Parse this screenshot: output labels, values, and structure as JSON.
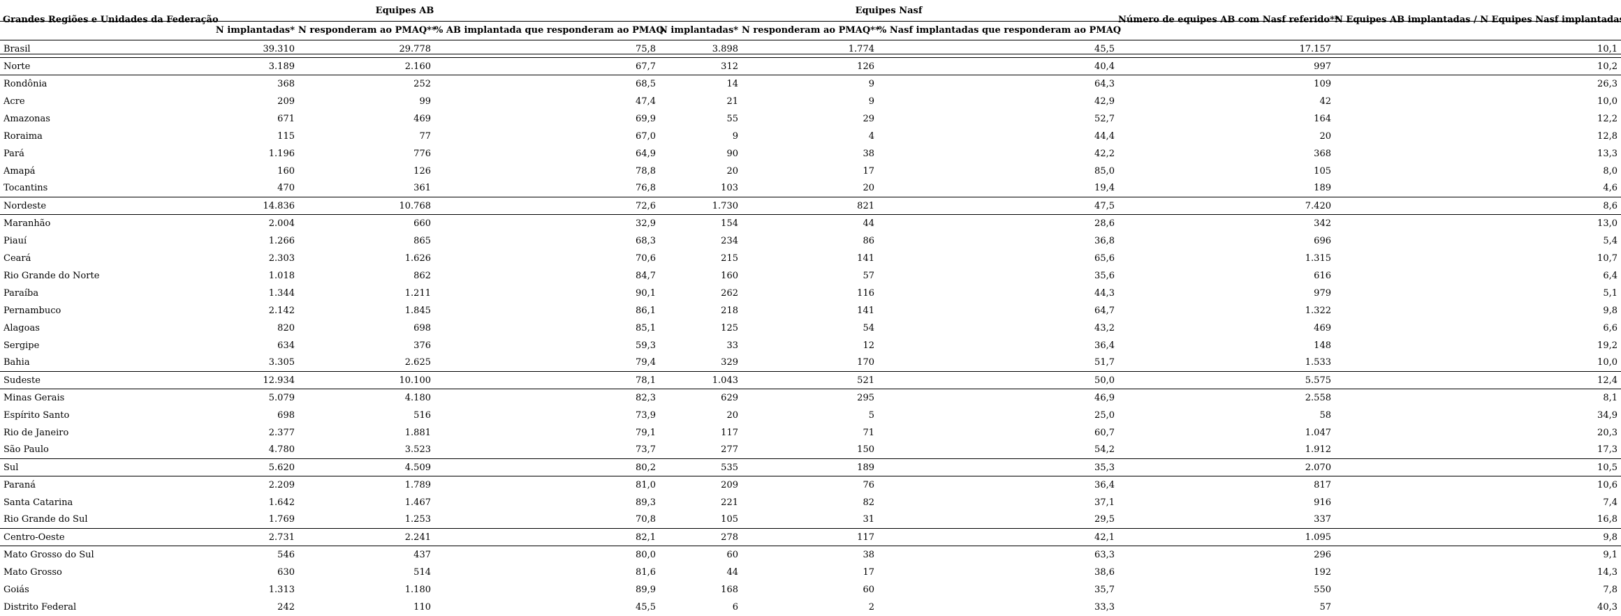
{
  "colors": {
    "text": "#000000",
    "background": "#ffffff",
    "rule": "#000000"
  },
  "table": {
    "region_column_header": "Grandes Regiões e Unidades da Federação",
    "groups": [
      {
        "label": "Equipes AB",
        "columns": [
          "N implantadas*",
          "N responderam ao PMAQ**",
          "% AB implantada que responderam ao PMAQ"
        ]
      },
      {
        "label": "Equipes Nasf",
        "columns": [
          "N implantadas*",
          "N responderam ao PMAQ**",
          "% Nasf implantadas que responderam ao PMAQ"
        ]
      }
    ],
    "extra_column_headers": [
      "Número de equipes AB com Nasf referido**",
      "N Equipes AB implantadas / N Equipes Nasf implantadas"
    ],
    "rows": [
      {
        "name": "Brasil",
        "level": "country",
        "values": [
          "39.310",
          "29.778",
          "75,8",
          "3.898",
          "1.774",
          "45,5",
          "17.157",
          "10,1"
        ]
      },
      {
        "name": "Norte",
        "level": "region",
        "values": [
          "3.189",
          "2.160",
          "67,7",
          "312",
          "126",
          "40,4",
          "997",
          "10,2"
        ]
      },
      {
        "name": "Rondônia",
        "level": "state",
        "values": [
          "368",
          "252",
          "68,5",
          "14",
          "9",
          "64,3",
          "109",
          "26,3"
        ]
      },
      {
        "name": "Acre",
        "level": "state",
        "values": [
          "209",
          "99",
          "47,4",
          "21",
          "9",
          "42,9",
          "42",
          "10,0"
        ]
      },
      {
        "name": "Amazonas",
        "level": "state",
        "values": [
          "671",
          "469",
          "69,9",
          "55",
          "29",
          "52,7",
          "164",
          "12,2"
        ]
      },
      {
        "name": "Roraima",
        "level": "state",
        "values": [
          "115",
          "77",
          "67,0",
          "9",
          "4",
          "44,4",
          "20",
          "12,8"
        ]
      },
      {
        "name": "Pará",
        "level": "state",
        "values": [
          "1.196",
          "776",
          "64,9",
          "90",
          "38",
          "42,2",
          "368",
          "13,3"
        ]
      },
      {
        "name": "Amapá",
        "level": "state",
        "values": [
          "160",
          "126",
          "78,8",
          "20",
          "17",
          "85,0",
          "105",
          "8,0"
        ]
      },
      {
        "name": "Tocantins",
        "level": "state",
        "values": [
          "470",
          "361",
          "76,8",
          "103",
          "20",
          "19,4",
          "189",
          "4,6"
        ]
      },
      {
        "name": "Nordeste",
        "level": "region",
        "values": [
          "14.836",
          "10.768",
          "72,6",
          "1.730",
          "821",
          "47,5",
          "7.420",
          "8,6"
        ]
      },
      {
        "name": "Maranhão",
        "level": "state",
        "values": [
          "2.004",
          "660",
          "32,9",
          "154",
          "44",
          "28,6",
          "342",
          "13,0"
        ]
      },
      {
        "name": "Piauí",
        "level": "state",
        "values": [
          "1.266",
          "865",
          "68,3",
          "234",
          "86",
          "36,8",
          "696",
          "5,4"
        ]
      },
      {
        "name": "Ceará",
        "level": "state",
        "values": [
          "2.303",
          "1.626",
          "70,6",
          "215",
          "141",
          "65,6",
          "1.315",
          "10,7"
        ]
      },
      {
        "name": "Rio Grande do Norte",
        "level": "state",
        "values": [
          "1.018",
          "862",
          "84,7",
          "160",
          "57",
          "35,6",
          "616",
          "6,4"
        ]
      },
      {
        "name": "Paraíba",
        "level": "state",
        "values": [
          "1.344",
          "1.211",
          "90,1",
          "262",
          "116",
          "44,3",
          "979",
          "5,1"
        ]
      },
      {
        "name": "Pernambuco",
        "level": "state",
        "values": [
          "2.142",
          "1.845",
          "86,1",
          "218",
          "141",
          "64,7",
          "1.322",
          "9,8"
        ]
      },
      {
        "name": "Alagoas",
        "level": "state",
        "values": [
          "820",
          "698",
          "85,1",
          "125",
          "54",
          "43,2",
          "469",
          "6,6"
        ]
      },
      {
        "name": "Sergipe",
        "level": "state",
        "values": [
          "634",
          "376",
          "59,3",
          "33",
          "12",
          "36,4",
          "148",
          "19,2"
        ]
      },
      {
        "name": "Bahia",
        "level": "state",
        "values": [
          "3.305",
          "2.625",
          "79,4",
          "329",
          "170",
          "51,7",
          "1.533",
          "10,0"
        ]
      },
      {
        "name": "Sudeste",
        "level": "region",
        "values": [
          "12.934",
          "10.100",
          "78,1",
          "1.043",
          "521",
          "50,0",
          "5.575",
          "12,4"
        ]
      },
      {
        "name": "Minas Gerais",
        "level": "state",
        "values": [
          "5.079",
          "4.180",
          "82,3",
          "629",
          "295",
          "46,9",
          "2.558",
          "8,1"
        ]
      },
      {
        "name": "Espírito Santo",
        "level": "state",
        "values": [
          "698",
          "516",
          "73,9",
          "20",
          "5",
          "25,0",
          "58",
          "34,9"
        ]
      },
      {
        "name": "Rio de Janeiro",
        "level": "state",
        "values": [
          "2.377",
          "1.881",
          "79,1",
          "117",
          "71",
          "60,7",
          "1.047",
          "20,3"
        ]
      },
      {
        "name": "São Paulo",
        "level": "state",
        "values": [
          "4.780",
          "3.523",
          "73,7",
          "277",
          "150",
          "54,2",
          "1.912",
          "17,3"
        ]
      },
      {
        "name": "Sul",
        "level": "region",
        "values": [
          "5.620",
          "4.509",
          "80,2",
          "535",
          "189",
          "35,3",
          "2.070",
          "10,5"
        ]
      },
      {
        "name": "Paraná",
        "level": "state",
        "values": [
          "2.209",
          "1.789",
          "81,0",
          "209",
          "76",
          "36,4",
          "817",
          "10,6"
        ]
      },
      {
        "name": "Santa Catarina",
        "level": "state",
        "values": [
          "1.642",
          "1.467",
          "89,3",
          "221",
          "82",
          "37,1",
          "916",
          "7,4"
        ]
      },
      {
        "name": "Rio Grande do Sul",
        "level": "state",
        "values": [
          "1.769",
          "1.253",
          "70,8",
          "105",
          "31",
          "29,5",
          "337",
          "16,8"
        ]
      },
      {
        "name": "Centro-Oeste",
        "level": "region",
        "values": [
          "2.731",
          "2.241",
          "82,1",
          "278",
          "117",
          "42,1",
          "1.095",
          "9,8"
        ]
      },
      {
        "name": "Mato Grosso do Sul",
        "level": "state",
        "values": [
          "546",
          "437",
          "80,0",
          "60",
          "38",
          "63,3",
          "296",
          "9,1"
        ]
      },
      {
        "name": "Mato Grosso",
        "level": "state",
        "values": [
          "630",
          "514",
          "81,6",
          "44",
          "17",
          "38,6",
          "192",
          "14,3"
        ]
      },
      {
        "name": "Goiás",
        "level": "state",
        "values": [
          "1.313",
          "1.180",
          "89,9",
          "168",
          "60",
          "35,7",
          "550",
          "7,8"
        ]
      },
      {
        "name": "Distrito Federal",
        "level": "state",
        "values": [
          "242",
          "110",
          "45,5",
          "6",
          "2",
          "33,3",
          "57",
          "40,3"
        ]
      }
    ]
  }
}
